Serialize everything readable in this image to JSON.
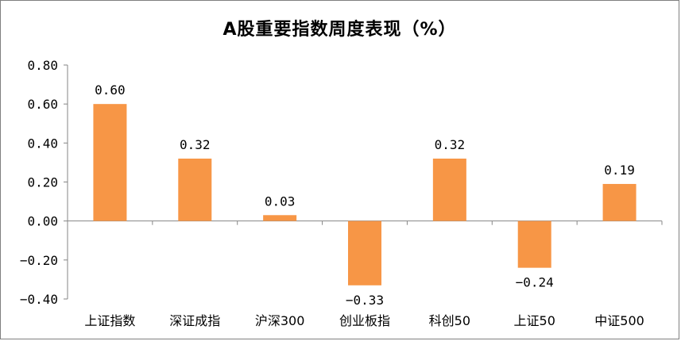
{
  "chart_data": {
    "type": "bar",
    "title": "A股重要指数周度表现（%）",
    "categories": [
      "上证指数",
      "深证成指",
      "沪深300",
      "创业板指",
      "科创50",
      "上证50",
      "中证500"
    ],
    "values": [
      0.6,
      0.32,
      0.03,
      -0.33,
      0.32,
      -0.24,
      0.19
    ],
    "value_labels": [
      "0.60",
      "0.32",
      "0.03",
      "−0.33",
      "0.32",
      "−0.24",
      "0.19"
    ],
    "ylim": [
      -0.4,
      0.8
    ],
    "yticks": [
      0.8,
      0.6,
      0.4,
      0.2,
      0.0,
      -0.2,
      -0.4
    ],
    "ytick_labels": [
      "0.80",
      "0.60",
      "0.40",
      "0.20",
      "0.00",
      "−0.20",
      "−0.40"
    ],
    "bar_color": "#f79646",
    "axis_color": "#868686",
    "grid": false,
    "legend": "none"
  }
}
